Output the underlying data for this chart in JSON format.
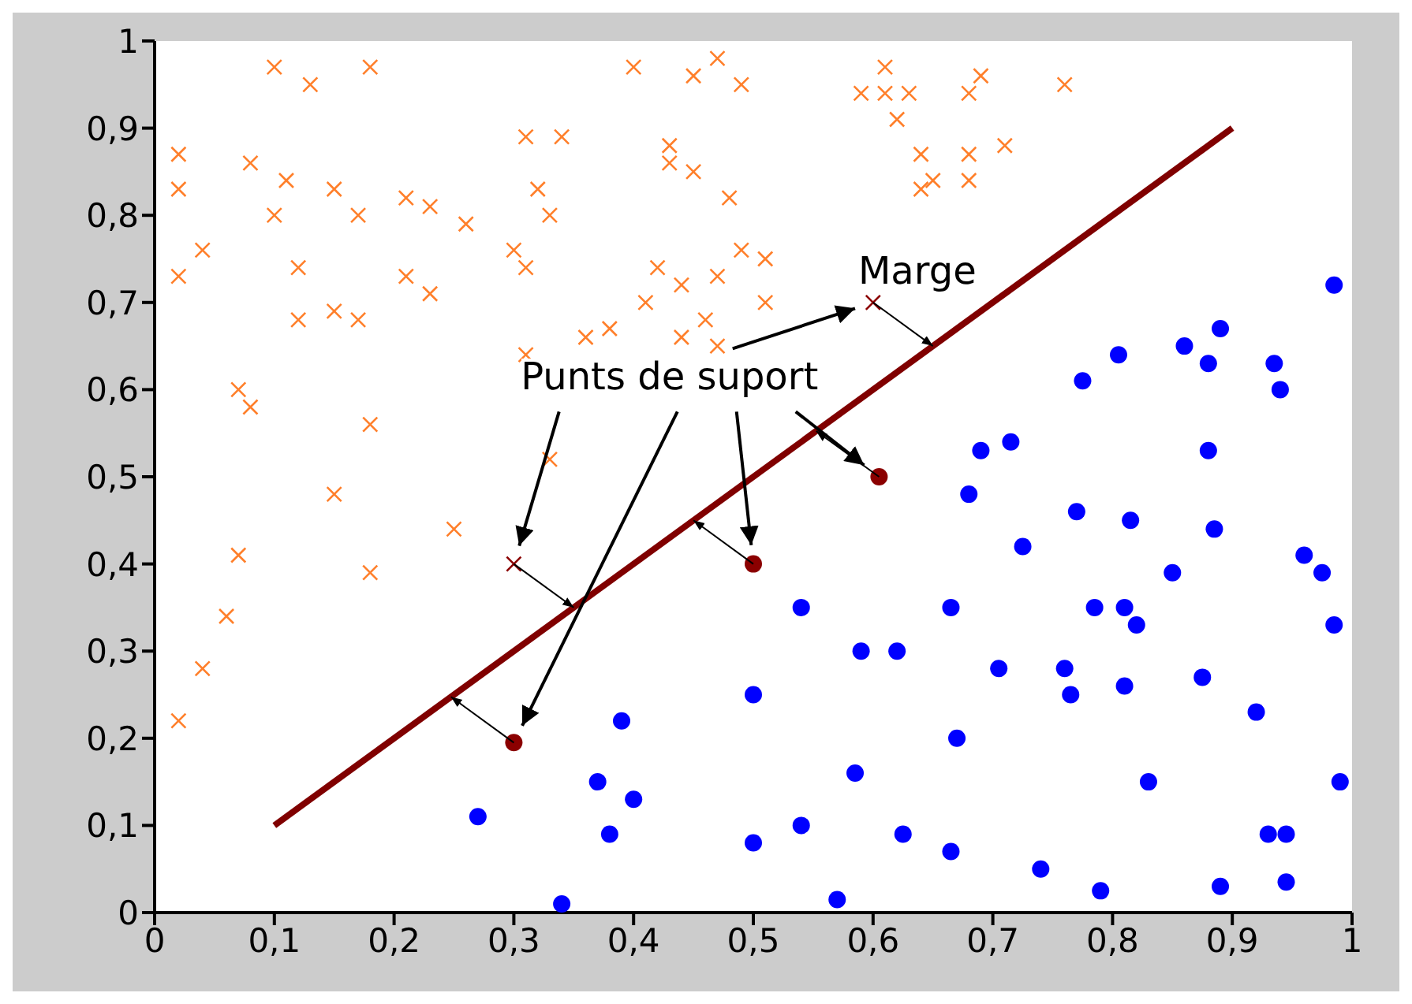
{
  "chart_data": {
    "type": "scatter",
    "xlim": [
      0,
      1
    ],
    "ylim": [
      0,
      1
    ],
    "xticks": [
      0,
      {
        "value": 0.1,
        "label": "0,1"
      },
      {
        "value": 0.2,
        "label": "0,2"
      },
      {
        "value": 0.3,
        "label": "0,3"
      },
      {
        "value": 0.4,
        "label": "0,4"
      },
      {
        "value": 0.5,
        "label": "0,5"
      },
      {
        "value": 0.6,
        "label": "0,6"
      },
      {
        "value": 0.7,
        "label": "0,7"
      },
      {
        "value": 0.8,
        "label": "0,8"
      },
      {
        "value": 0.9,
        "label": "0,9"
      },
      1
    ],
    "yticks": [
      0,
      {
        "value": 0.1,
        "label": "0,1"
      },
      {
        "value": 0.2,
        "label": "0,2"
      },
      {
        "value": 0.3,
        "label": "0,3"
      },
      {
        "value": 0.4,
        "label": "0,4"
      },
      {
        "value": 0.5,
        "label": "0,5"
      },
      {
        "value": 0.6,
        "label": "0,6"
      },
      {
        "value": 0.7,
        "label": "0,7"
      },
      {
        "value": 0.8,
        "label": "0,8"
      },
      {
        "value": 0.9,
        "label": "0,9"
      },
      1
    ],
    "annotations": [
      {
        "text": "Marge",
        "x": 0.6,
        "y": 0.7
      },
      "Punts de suport"
    ],
    "series": [
      {
        "marker": "cross",
        "color": "#ff7f2a",
        "x": [
          0.02,
          0.02,
          0.02,
          0.04,
          0.07,
          0.08,
          0.1,
          0.13,
          0.08,
          0.1,
          0.11,
          0.12,
          0.12,
          0.15,
          0.15,
          0.17,
          0.17,
          0.18,
          0.18,
          0.15,
          0.21,
          0.23,
          0.21,
          0.23,
          0.26,
          0.25,
          0.18,
          0.07,
          0.06,
          0.04,
          0.02,
          0.3,
          0.31,
          0.32,
          0.31,
          0.33,
          0.34,
          0.31,
          0.33,
          0.36,
          0.38,
          0.4,
          0.41,
          0.42,
          0.43,
          0.43,
          0.45,
          0.44,
          0.44,
          0.46,
          0.47,
          0.47,
          0.45,
          0.49,
          0.48,
          0.49,
          0.47,
          0.51,
          0.51,
          0.59,
          0.61,
          0.61,
          0.62,
          0.63,
          0.64,
          0.64,
          0.65,
          0.68,
          0.69,
          0.68,
          0.68,
          0.71,
          0.76
        ],
        "values": [
          0.83,
          0.87,
          0.73,
          0.76,
          0.6,
          0.58,
          0.97,
          0.95,
          0.86,
          0.8,
          0.84,
          0.74,
          0.68,
          0.83,
          0.69,
          0.8,
          0.68,
          0.97,
          0.56,
          0.48,
          0.82,
          0.81,
          0.73,
          0.71,
          0.79,
          0.44,
          0.39,
          0.41,
          0.34,
          0.28,
          0.22,
          0.76,
          0.89,
          0.83,
          0.74,
          0.8,
          0.89,
          0.64,
          0.52,
          0.66,
          0.67,
          0.97,
          0.7,
          0.74,
          0.88,
          0.86,
          0.85,
          0.72,
          0.66,
          0.68,
          0.65,
          0.98,
          0.96,
          0.95,
          0.82,
          0.76,
          0.73,
          0.75,
          0.7,
          0.94,
          0.97,
          0.94,
          0.91,
          0.94,
          0.87,
          0.83,
          0.84,
          0.94,
          0.96,
          0.87,
          0.84,
          0.88,
          0.95
        ]
      },
      {
        "marker": "circle",
        "color": "#0000ff",
        "x": [
          0.27,
          0.34,
          0.37,
          0.38,
          0.39,
          0.4,
          0.5,
          0.5,
          0.54,
          0.54,
          0.57,
          0.585,
          0.59,
          0.62,
          0.625,
          0.665,
          0.665,
          0.67,
          0.68,
          0.69,
          0.705,
          0.715,
          0.725,
          0.74,
          0.76,
          0.765,
          0.77,
          0.775,
          0.785,
          0.79,
          0.805,
          0.81,
          0.81,
          0.815,
          0.82,
          0.83,
          0.85,
          0.86,
          0.875,
          0.88,
          0.88,
          0.885,
          0.89,
          0.89,
          0.92,
          0.93,
          0.935,
          0.94,
          0.945,
          0.945,
          0.96,
          0.975,
          0.985,
          0.985,
          0.99
        ],
        "values": [
          0.11,
          0.01,
          0.15,
          0.09,
          0.22,
          0.13,
          0.08,
          0.25,
          0.35,
          0.1,
          0.015,
          0.16,
          0.3,
          0.3,
          0.09,
          0.35,
          0.07,
          0.2,
          0.48,
          0.53,
          0.28,
          0.54,
          0.42,
          0.05,
          0.28,
          0.25,
          0.46,
          0.61,
          0.35,
          0.025,
          0.64,
          0.35,
          0.26,
          0.45,
          0.33,
          0.15,
          0.39,
          0.65,
          0.27,
          0.63,
          0.53,
          0.44,
          0.67,
          0.03,
          0.23,
          0.09,
          0.63,
          0.6,
          0.09,
          0.035,
          0.41,
          0.39,
          0.33,
          0.72,
          0.15
        ]
      },
      {
        "marker": "cross",
        "color": "#8b0000",
        "x": [
          0.3,
          0.6
        ],
        "values": [
          0.4,
          0.7
        ]
      },
      {
        "marker": "circle",
        "color": "#8b0000",
        "x": [
          0.3,
          0.5,
          0.605
        ],
        "values": [
          0.195,
          0.4,
          0.5
        ]
      },
      {
        "type": "line",
        "marker": "none",
        "color": "#800000",
        "x": [
          0.1,
          0.9
        ],
        "values": [
          0.1,
          0.9
        ]
      }
    ]
  }
}
